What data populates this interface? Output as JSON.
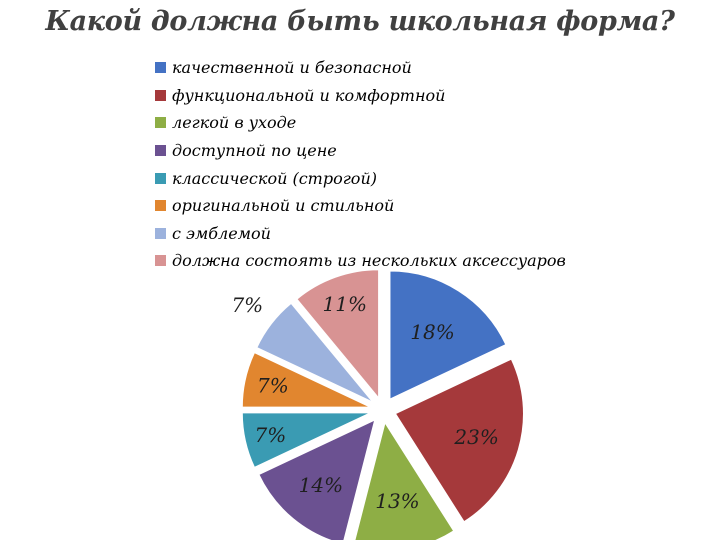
{
  "chart_data": {
    "type": "pie",
    "title": "Какой должна быть школьная форма?",
    "legend_position": "top",
    "exploded": true,
    "categories": [
      "качественной и безопасной",
      "функциональной и комфортной",
      "легкой в уходе",
      "доступной по цене",
      "классической (строгой)",
      "оригинальной и стильной",
      "с эмблемой",
      "должна состоять из нескольких аксессуаров"
    ],
    "values": [
      18,
      23,
      13,
      14,
      7,
      7,
      7,
      11
    ],
    "labels": [
      "18%",
      "23%",
      "13%",
      "14%",
      "7%",
      "7%",
      "7%",
      "11%"
    ],
    "colors": [
      "#4472C4",
      "#A5393B",
      "#8EAE45",
      "#6B5191",
      "#3A9BB3",
      "#E1862F",
      "#9CB2DD",
      "#D89393"
    ],
    "label_colors": [
      "#1f1f1f",
      "#1f1f1f",
      "#1f1f1f",
      "#1f1f1f",
      "#1f1f1f",
      "#1f1f1f",
      "#1f1f1f",
      "#1f1f1f"
    ]
  }
}
